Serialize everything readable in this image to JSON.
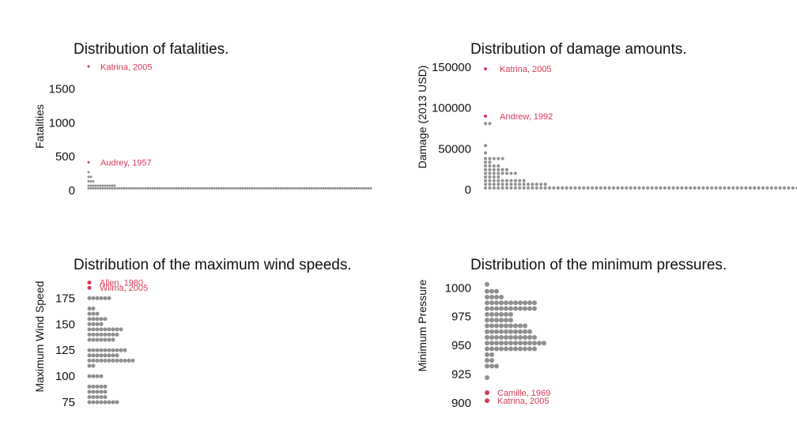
{
  "colors": {
    "dot": "#8f8f8f",
    "highlight": "#d83a58",
    "text": "#111111"
  },
  "chart_data": [
    {
      "type": "scatter",
      "subtype": "dot-distribution",
      "title": "Distribution of fatalities.",
      "ylabel": "Fatalities",
      "ylim": [
        0,
        1836
      ],
      "yticks": [
        0,
        500,
        1000,
        1500
      ],
      "grid": false,
      "bins": [
        {
          "y": 30,
          "count": 120
        },
        {
          "y": 70,
          "count": 12
        },
        {
          "y": 135,
          "count": 3
        },
        {
          "y": 200,
          "count": 2
        },
        {
          "y": 270,
          "count": 1
        }
      ],
      "highlights": [
        {
          "label": "Katrina, 2005",
          "y": 1833
        },
        {
          "label": "Audrey, 1957",
          "y": 416
        }
      ]
    },
    {
      "type": "scatter",
      "subtype": "dot-distribution",
      "title": "Distribution of damage amounts.",
      "ylabel": "Damage (2013 USD)",
      "ylim": [
        0,
        151000
      ],
      "yticks": [
        0,
        50000,
        100000,
        150000
      ],
      "grid": false,
      "bins": [
        {
          "y": 2000,
          "count": 100
        },
        {
          "y": 6500,
          "count": 15
        },
        {
          "y": 11000,
          "count": 10
        },
        {
          "y": 15500,
          "count": 4
        },
        {
          "y": 20000,
          "count": 8
        },
        {
          "y": 24500,
          "count": 6
        },
        {
          "y": 29000,
          "count": 4
        },
        {
          "y": 33500,
          "count": 2
        },
        {
          "y": 38000,
          "count": 5
        },
        {
          "y": 45000,
          "count": 1
        },
        {
          "y": 54000,
          "count": 1
        },
        {
          "y": 81000,
          "count": 2
        }
      ],
      "highlights": [
        {
          "label": "Katrina, 2005",
          "y": 148000
        },
        {
          "label": "Andrew, 1992",
          "y": 90000
        }
      ]
    },
    {
      "type": "scatter",
      "subtype": "dot-distribution",
      "title": "Distribution of the maximum wind speeds.",
      "ylabel": "Maximum Wind Speed",
      "ylim": [
        72,
        192
      ],
      "yticks": [
        75,
        100,
        125,
        150,
        175
      ],
      "grid": false,
      "bins": [
        {
          "y": 75,
          "count": 8
        },
        {
          "y": 80,
          "count": 5
        },
        {
          "y": 85,
          "count": 5
        },
        {
          "y": 90,
          "count": 5
        },
        {
          "y": 100,
          "count": 4
        },
        {
          "y": 110,
          "count": 2
        },
        {
          "y": 115,
          "count": 12
        },
        {
          "y": 120,
          "count": 8
        },
        {
          "y": 125,
          "count": 10
        },
        {
          "y": 135,
          "count": 7
        },
        {
          "y": 140,
          "count": 8
        },
        {
          "y": 145,
          "count": 9
        },
        {
          "y": 150,
          "count": 4
        },
        {
          "y": 155,
          "count": 5
        },
        {
          "y": 160,
          "count": 3
        },
        {
          "y": 165,
          "count": 2
        },
        {
          "y": 175,
          "count": 6
        }
      ],
      "highlights": [
        {
          "label": "Allen, 1980",
          "y": 190
        },
        {
          "label": "Wilma, 2005",
          "y": 185
        }
      ]
    },
    {
      "type": "scatter",
      "subtype": "dot-distribution",
      "title": "Distribution of the minimum pressures.",
      "ylabel": "Minimum Pressure",
      "ylim": [
        898,
        1005
      ],
      "yticks": [
        900,
        925,
        950,
        975,
        1000
      ],
      "grid": false,
      "bins": [
        {
          "y": 922,
          "count": 1
        },
        {
          "y": 932,
          "count": 3
        },
        {
          "y": 937,
          "count": 2
        },
        {
          "y": 942,
          "count": 2
        },
        {
          "y": 947,
          "count": 11
        },
        {
          "y": 952,
          "count": 13
        },
        {
          "y": 957,
          "count": 11
        },
        {
          "y": 962,
          "count": 10
        },
        {
          "y": 967,
          "count": 9
        },
        {
          "y": 972,
          "count": 6
        },
        {
          "y": 977,
          "count": 6
        },
        {
          "y": 982,
          "count": 11
        },
        {
          "y": 987,
          "count": 11
        },
        {
          "y": 992,
          "count": 4
        },
        {
          "y": 997,
          "count": 3
        },
        {
          "y": 1003,
          "count": 1
        }
      ],
      "highlights": [
        {
          "label": "Camille, 1969",
          "y": 909
        },
        {
          "label": "Katrina, 2005",
          "y": 902
        }
      ]
    }
  ]
}
